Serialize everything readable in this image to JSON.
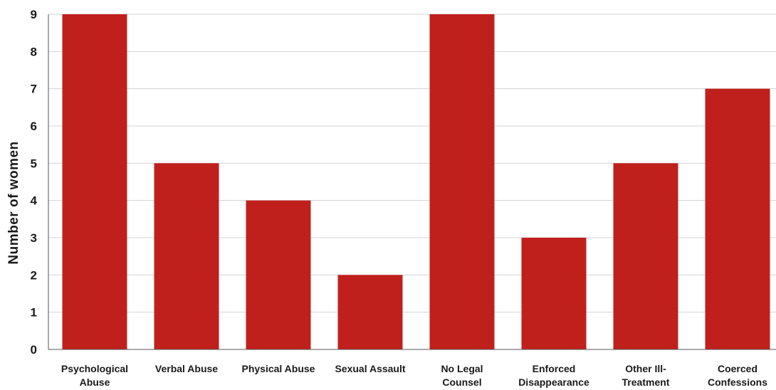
{
  "chart_data": {
    "type": "bar",
    "title": "",
    "xlabel": "",
    "ylabel": "Number of women",
    "categories": [
      [
        "Psychological",
        "Abuse"
      ],
      [
        "Verbal Abuse"
      ],
      [
        "Physical Abuse"
      ],
      [
        "Sexual Assault"
      ],
      [
        "No Legal",
        "Counsel"
      ],
      [
        "Enforced",
        "Disappearance"
      ],
      [
        "Other Ill-",
        "Treatment"
      ],
      [
        "Coerced",
        "Confessions"
      ]
    ],
    "values": [
      9,
      5,
      4,
      2,
      9,
      3,
      5,
      7
    ],
    "ylim": [
      0,
      9
    ],
    "yticks": [
      0,
      1,
      2,
      3,
      4,
      5,
      6,
      7,
      8,
      9
    ],
    "grid": true,
    "bar_color": "#c0201c"
  }
}
